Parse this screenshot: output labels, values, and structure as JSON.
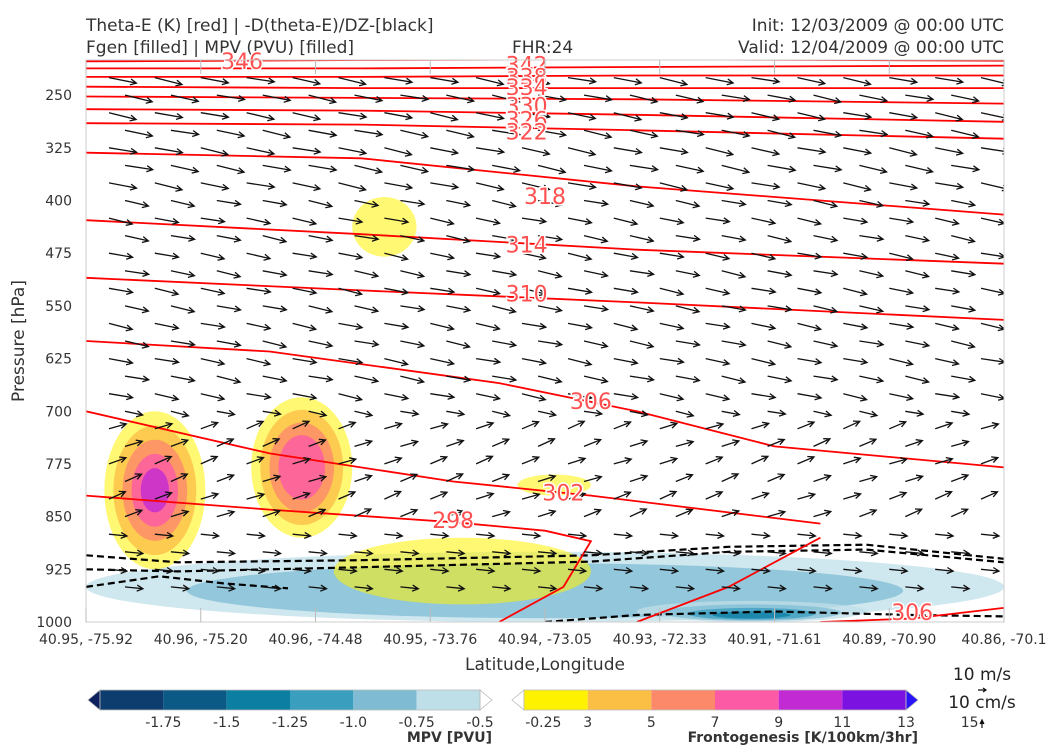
{
  "header": {
    "title_line1": "Theta-E (K) [red] | -D(theta-E)/DZ-[black]",
    "title_line2": "Fgen [filled] | MPV (PVU) [filled]",
    "fhr": "FHR:24",
    "init": "Init: 12/03/2009 @ 00:00 UTC",
    "valid": "Valid: 12/04/2009 @ 00:00 UTC"
  },
  "chart_data": {
    "type": "cross-section",
    "xlabel": "Latitude,Longitude",
    "ylabel": "Pressure [hPa]",
    "ylim": [
      1000,
      200
    ],
    "x_tick_labels": [
      "40.95, -75.92",
      "40.96, -75.20",
      "40.96, -74.48",
      "40.95, -73.76",
      "40.94, -73.05",
      "40.93, -72.33",
      "40.91, -71.61",
      "40.89, -70.90",
      "40.86, -70.1"
    ],
    "y_ticks": [
      250,
      325,
      400,
      475,
      550,
      625,
      700,
      775,
      850,
      925,
      1000
    ],
    "theta_e_contour_labels": [
      {
        "value": "346",
        "x_frac": 0.17,
        "p": 203
      },
      {
        "value": "342",
        "x_frac": 0.48,
        "p": 208
      },
      {
        "value": "338",
        "x_frac": 0.48,
        "p": 225
      },
      {
        "value": "334",
        "x_frac": 0.48,
        "p": 240
      },
      {
        "value": "330",
        "x_frac": 0.48,
        "p": 266
      },
      {
        "value": "326",
        "x_frac": 0.48,
        "p": 286
      },
      {
        "value": "322",
        "x_frac": 0.48,
        "p": 303
      },
      {
        "value": "318",
        "x_frac": 0.5,
        "p": 395
      },
      {
        "value": "314",
        "x_frac": 0.48,
        "p": 464
      },
      {
        "value": "310",
        "x_frac": 0.48,
        "p": 534
      },
      {
        "value": "306",
        "x_frac": 0.55,
        "p": 687
      },
      {
        "value": "302",
        "x_frac": 0.52,
        "p": 817
      },
      {
        "value": "298",
        "x_frac": 0.4,
        "p": 856
      },
      {
        "value": "306",
        "x_frac": 0.9,
        "p": 987
      }
    ],
    "fgen_regions": [
      {
        "x": [
          0.02,
          0.13
        ],
        "p": [
          700,
          925
        ],
        "max_level": 11
      },
      {
        "x": [
          0.18,
          0.29
        ],
        "p": [
          680,
          880
        ],
        "max_level": 9
      },
      {
        "x": [
          0.29,
          0.36
        ],
        "p": [
          395,
          480
        ],
        "max_level": 3
      },
      {
        "x": [
          0.27,
          0.55
        ],
        "p": [
          880,
          975
        ],
        "max_level": 3
      },
      {
        "x": [
          0.47,
          0.55
        ],
        "p": [
          790,
          820
        ],
        "max_level": 3
      }
    ],
    "mpv_regions": [
      {
        "x": [
          0.0,
          1.0
        ],
        "p": [
          900,
          1000
        ],
        "min_level": -0.5
      },
      {
        "x": [
          0.6,
          0.85
        ],
        "p": [
          970,
          1000
        ],
        "min_level": -1.5
      }
    ],
    "stability_contours_note": "dashed black lines near 900-1000 hPa",
    "legend": {
      "mpv": {
        "title": "MPV [PVU]",
        "tick_labels": [
          "-1.75",
          "-1.5",
          "-1.25",
          "-1.0",
          "-0.75",
          "-0.5",
          "-0.25"
        ],
        "colors": [
          "#0c1f5e",
          "#0c3d6e",
          "#0b5a86",
          "#0c7ea2",
          "#3a9ebf",
          "#7fbcd4",
          "#bfdfe8",
          "#ffffff"
        ]
      },
      "fgen": {
        "title": "Frontogenesis [K/100km/3hr]",
        "tick_labels": [
          "3",
          "5",
          "7",
          "9",
          "11",
          "13",
          "15"
        ],
        "colors": [
          "#ffffff",
          "#fff200",
          "#fcbf46",
          "#fc8a6a",
          "#fc5aa5",
          "#c22ad4",
          "#7b12e0",
          "#2a14f7"
        ]
      },
      "wind_ref": "10 m/s",
      "vert_ref": "10 cm/s"
    },
    "colors": {
      "theta_e": "#ff0000",
      "theta_e_label": "#ff5050",
      "arrow": "#111111"
    }
  }
}
